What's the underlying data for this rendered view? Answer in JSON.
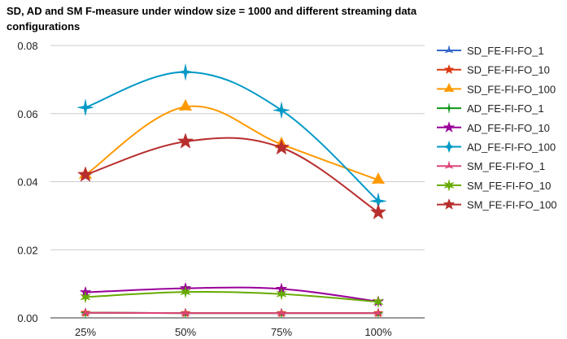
{
  "chart_data": {
    "type": "line",
    "title": "SD, AD and SM F-measure under window size = 1000 and different streaming data configurations",
    "xlabel": "",
    "ylabel": "",
    "categories": [
      "25%",
      "50%",
      "75%",
      "100%"
    ],
    "ylim": [
      0,
      0.08
    ],
    "yticks": [
      "0.00",
      "0.02",
      "0.04",
      "0.06",
      "0.08"
    ],
    "grid": true,
    "legend_position": "right",
    "series": [
      {
        "name": "SD_FE-FI-FO_1",
        "color": "#3366cc",
        "values": [
          0.0015,
          0.0014,
          0.0014,
          0.0014
        ]
      },
      {
        "name": "SD_FE-FI-FO_10",
        "color": "#dc3912",
        "values": [
          0.0015,
          0.0014,
          0.0014,
          0.0014
        ]
      },
      {
        "name": "SD_FE-FI-FO_100",
        "color": "#ff9900",
        "values": [
          0.042,
          0.062,
          0.051,
          0.0405
        ]
      },
      {
        "name": "AD_FE-FI-FO_1",
        "color": "#109618",
        "values": [
          0.0015,
          0.0014,
          0.0014,
          0.0014
        ]
      },
      {
        "name": "AD_FE-FI-FO_10",
        "color": "#990099",
        "values": [
          0.0075,
          0.0087,
          0.0085,
          0.0048
        ]
      },
      {
        "name": "AD_FE-FI-FO_100",
        "color": "#0099c6",
        "values": [
          0.0618,
          0.0722,
          0.061,
          0.0343
        ]
      },
      {
        "name": "SM_FE-FI-FO_1",
        "color": "#dd4477",
        "values": [
          0.0015,
          0.0014,
          0.0014,
          0.0014
        ]
      },
      {
        "name": "SM_FE-FI-FO_10",
        "color": "#66aa00",
        "values": [
          0.0061,
          0.0076,
          0.007,
          0.0047
        ]
      },
      {
        "name": "SM_FE-FI-FO_100",
        "color": "#b82e2e",
        "values": [
          0.042,
          0.0518,
          0.05,
          0.031
        ]
      }
    ]
  }
}
